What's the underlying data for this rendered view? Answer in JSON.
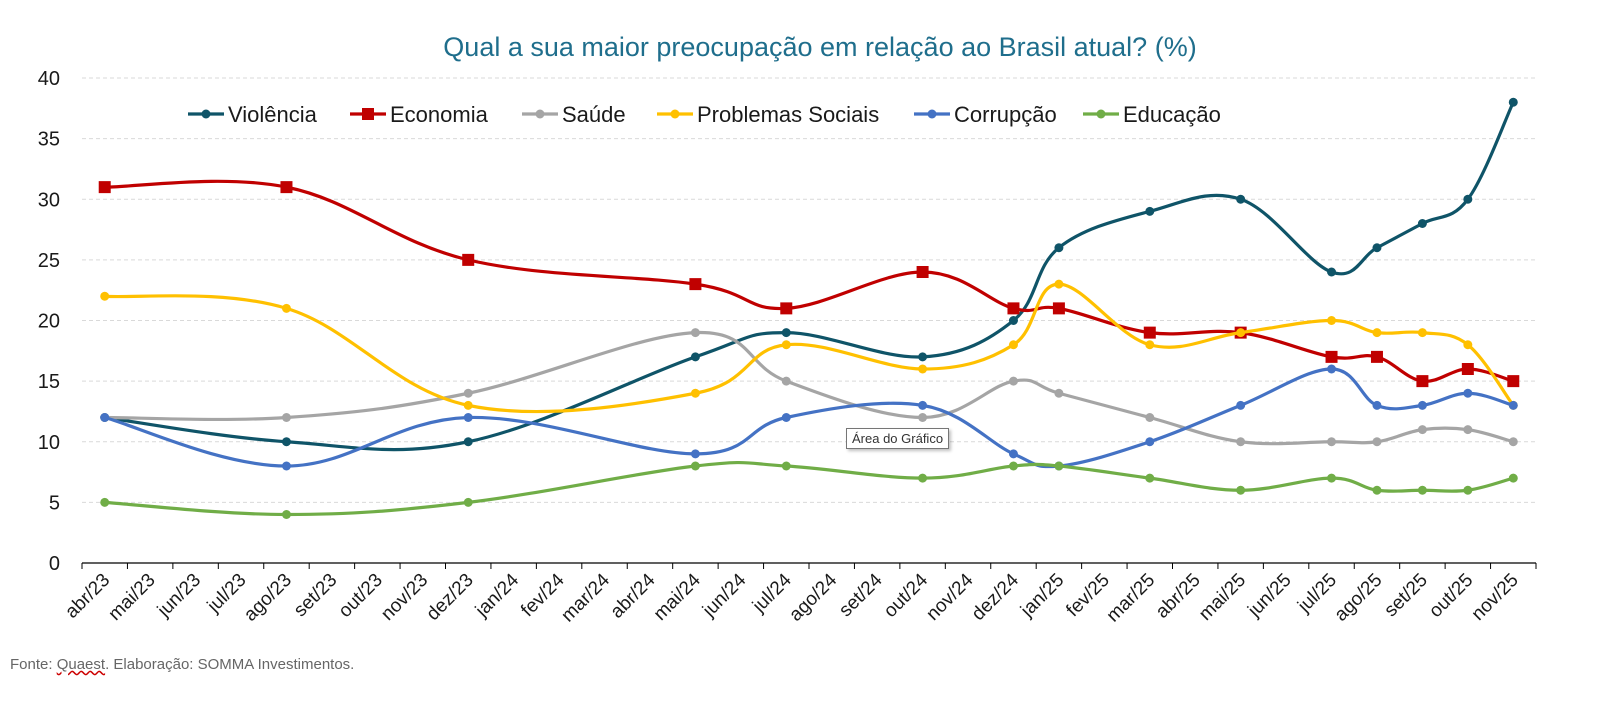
{
  "chart_data": {
    "type": "line",
    "title": "Qual a sua maior preocupação em relação ao Brasil atual? (%)",
    "xlabel": "",
    "ylabel": "",
    "ylim": [
      0,
      40
    ],
    "yticks": [
      0,
      5,
      10,
      15,
      20,
      25,
      30,
      35,
      40
    ],
    "grid": true,
    "legend_position": "top",
    "categories": [
      "abr/23",
      "mai/23",
      "jun/23",
      "jul/23",
      "ago/23",
      "set/23",
      "out/23",
      "nov/23",
      "dez/23",
      "jan/24",
      "fev/24",
      "mar/24",
      "abr/24",
      "mai/24",
      "jun/24",
      "jul/24",
      "ago/24",
      "set/24",
      "out/24",
      "nov/24",
      "dez/24",
      "jan/25",
      "fev/25",
      "mar/25",
      "abr/25",
      "mai/25",
      "jun/25",
      "jul/25",
      "ago/25",
      "set/25",
      "out/25",
      "nov/25"
    ],
    "series": [
      {
        "name": "Violência",
        "color": "#0f5468",
        "marker": "circle",
        "values": [
          12,
          null,
          null,
          null,
          10,
          null,
          null,
          null,
          10,
          null,
          null,
          null,
          null,
          17,
          null,
          19,
          null,
          null,
          17,
          null,
          20,
          26,
          null,
          29,
          null,
          30,
          null,
          24,
          26,
          28,
          30,
          38
        ]
      },
      {
        "name": "Economia",
        "color": "#c00000",
        "marker": "square",
        "values": [
          31,
          null,
          null,
          null,
          31,
          null,
          null,
          null,
          25,
          null,
          null,
          null,
          null,
          23,
          null,
          21,
          null,
          null,
          24,
          null,
          21,
          21,
          null,
          19,
          null,
          19,
          null,
          17,
          17,
          15,
          16,
          15
        ]
      },
      {
        "name": "Saúde",
        "color": "#a5a5a5",
        "marker": "circle",
        "values": [
          12,
          null,
          null,
          null,
          12,
          null,
          null,
          null,
          14,
          null,
          null,
          null,
          null,
          19,
          null,
          15,
          null,
          null,
          12,
          null,
          15,
          14,
          null,
          12,
          null,
          10,
          null,
          10,
          10,
          11,
          11,
          10
        ]
      },
      {
        "name": "Problemas Sociais",
        "color": "#ffc000",
        "marker": "circle",
        "values": [
          22,
          null,
          null,
          null,
          21,
          null,
          null,
          null,
          13,
          null,
          null,
          null,
          null,
          14,
          null,
          18,
          null,
          null,
          16,
          null,
          18,
          23,
          null,
          18,
          null,
          19,
          null,
          20,
          19,
          19,
          18,
          13
        ]
      },
      {
        "name": "Corrupção",
        "color": "#4472c4",
        "marker": "circle",
        "values": [
          12,
          null,
          null,
          null,
          8,
          null,
          null,
          null,
          12,
          null,
          null,
          null,
          null,
          9,
          null,
          12,
          null,
          null,
          13,
          null,
          9,
          8,
          null,
          10,
          null,
          13,
          null,
          16,
          13,
          13,
          14,
          13
        ]
      },
      {
        "name": "Educação",
        "color": "#70ad47",
        "marker": "circle",
        "values": [
          5,
          null,
          null,
          null,
          4,
          null,
          null,
          null,
          5,
          null,
          null,
          null,
          null,
          8,
          null,
          8,
          null,
          null,
          7,
          null,
          8,
          8,
          null,
          7,
          null,
          6,
          null,
          7,
          6,
          6,
          6,
          7
        ]
      }
    ]
  },
  "tooltip": "Área do Gráfico",
  "source": {
    "prefix": "Fonte: ",
    "underlined": "Quaest",
    "suffix": ". Elaboração: SOMMA Investimentos."
  },
  "colors": {
    "title": "#1f6e8c",
    "grid": "#d9d9d9",
    "axis": "#000000",
    "background": "#ffffff"
  }
}
